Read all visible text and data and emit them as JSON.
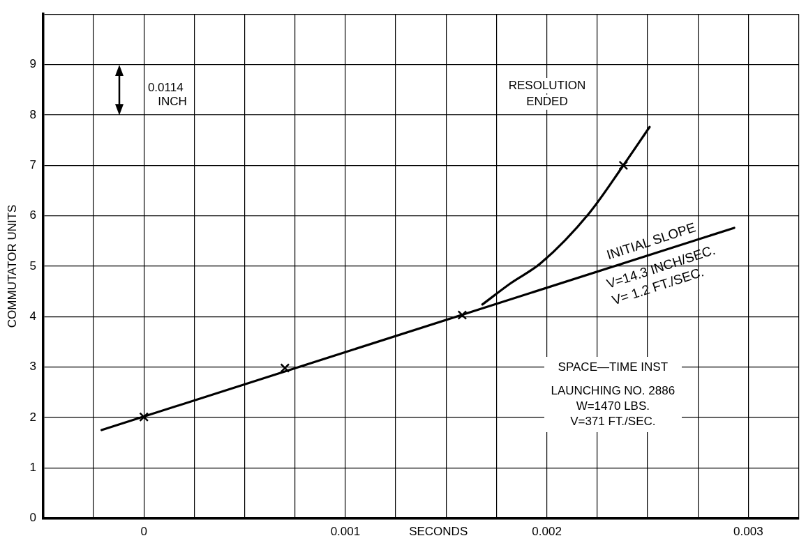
{
  "chart_data": {
    "type": "line",
    "xlabel": "SECONDS",
    "ylabel": "COMMUTATOR UNITS",
    "xlim": [
      -0.0005,
      0.00325
    ],
    "ylim": [
      0,
      10
    ],
    "xticks": [
      {
        "value": -0.0005,
        "label": null
      },
      {
        "value": -0.00025,
        "label": null
      },
      0,
      {
        "value": 0.00025,
        "label": null
      },
      {
        "value": 0.0005,
        "label": null
      },
      {
        "value": 0.00075,
        "label": null
      },
      0.001,
      {
        "value": 0.00125,
        "label": null
      },
      {
        "value": 0.0015,
        "label": null
      },
      {
        "value": 0.00175,
        "label": null
      },
      0.002,
      {
        "value": 0.00225,
        "label": null
      },
      {
        "value": 0.0025,
        "label": null
      },
      {
        "value": 0.00275,
        "label": null
      },
      0.003,
      {
        "value": 0.00325,
        "label": null
      }
    ],
    "yticks": [
      0,
      1,
      2,
      3,
      4,
      5,
      6,
      7,
      8,
      9,
      {
        "value": 10,
        "label": null
      }
    ],
    "grid": true,
    "series": [
      {
        "type": "scatter",
        "color": "#000000",
        "marker": "cross",
        "x": [
          0,
          0.0007,
          0.00158,
          0.00238
        ],
        "values": [
          2.01,
          2.98,
          4.03,
          7.0
        ]
      },
      {
        "color": "#000000",
        "x": [
          -0.00021,
          0.00293
        ],
        "values": [
          1.75,
          5.76
        ]
      },
      {
        "color": "#000000",
        "x": [
          0.00168,
          0.00182,
          0.00197,
          0.00221,
          0.00238,
          0.00251
        ],
        "values": [
          4.24,
          4.66,
          5.06,
          6.05,
          7.0,
          7.76
        ]
      }
    ],
    "annotations": [
      "0.0114",
      "INCH",
      "RESOLUTION",
      "ENDED",
      "INITIAL SLOPE",
      "V=14.3 INCH/SEC.",
      "V= 1.2 FT./SEC.",
      "SPACE—TIME INST",
      "LAUNCHING NO. 2886",
      "W=1470 LBS.",
      "V=371 FT./SEC."
    ]
  }
}
